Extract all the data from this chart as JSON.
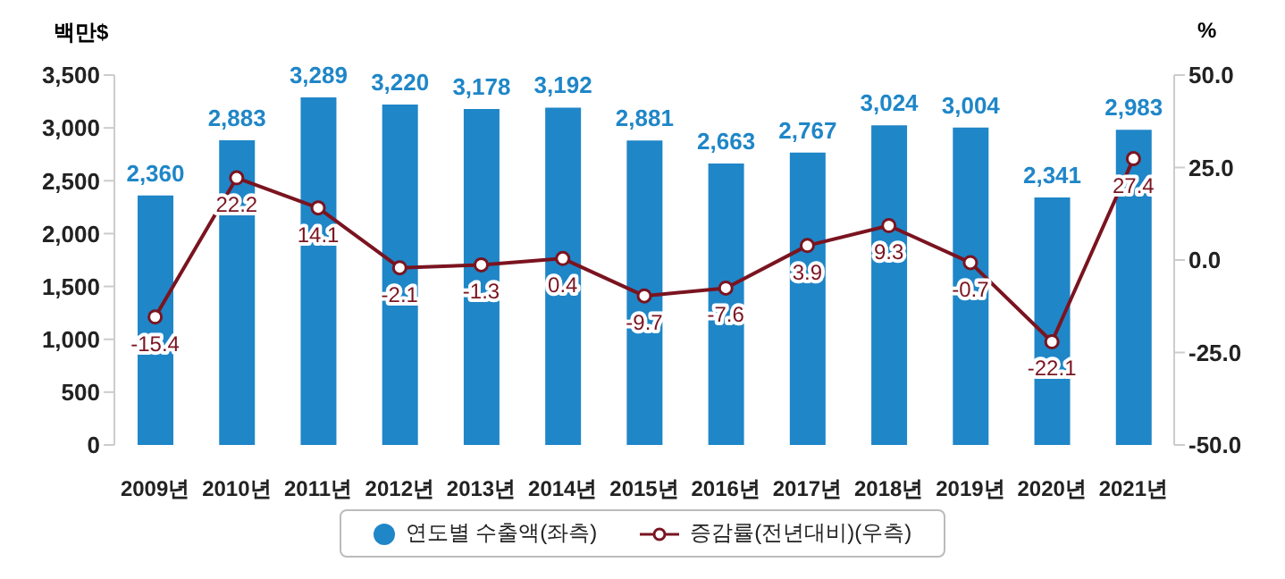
{
  "chart_data": {
    "type": "bar",
    "ylabel": "백만$",
    "y2label": "%",
    "categories": [
      "2009년",
      "2010년",
      "2011년",
      "2012년",
      "2013년",
      "2014년",
      "2015년",
      "2016년",
      "2017년",
      "2018년",
      "2019년",
      "2020년",
      "2021년"
    ],
    "series": [
      {
        "name": "연도별 수출액(좌측)",
        "color": "#1f86c8",
        "values": [
          2360,
          2883,
          3289,
          3220,
          3178,
          3192,
          2881,
          2663,
          2767,
          3024,
          3004,
          2341,
          2983
        ],
        "value_labels": [
          "2,360",
          "2,883",
          "3,289",
          "3,220",
          "3,178",
          "3,192",
          "2,881",
          "2,663",
          "2,767",
          "3,024",
          "3,004",
          "2,341",
          "2,983"
        ]
      },
      {
        "name": "증감률(전년대비)(우측)",
        "type": "line",
        "axis": "y2",
        "color": "#7a1420",
        "marker": "circle",
        "values": [
          -15.4,
          22.2,
          14.1,
          -2.1,
          -1.3,
          0.4,
          -9.7,
          -7.6,
          3.9,
          9.3,
          -0.7,
          -22.1,
          27.4
        ],
        "value_labels": [
          "-15.4",
          "22.2",
          "14.1",
          "-2.1",
          "-1.3",
          "0.4",
          "-9.7",
          "-7.6",
          "3.9",
          "9.3",
          "-0.7",
          "-22.1",
          "27.4"
        ]
      }
    ],
    "ylim": [
      0,
      3500
    ],
    "yticks": [
      {
        "value": 0,
        "label": "0"
      },
      {
        "value": 500,
        "label": "500"
      },
      {
        "value": 1000,
        "label": "1,000"
      },
      {
        "value": 1500,
        "label": "1,500"
      },
      {
        "value": 2000,
        "label": "2,000"
      },
      {
        "value": 2500,
        "label": "2,500"
      },
      {
        "value": 3000,
        "label": "3,000"
      },
      {
        "value": 3500,
        "label": "3,500"
      }
    ],
    "y2lim": [
      -50,
      50
    ],
    "y2ticks": [
      {
        "value": -50,
        "label": "-50.0"
      },
      {
        "value": -25,
        "label": "-25.0"
      },
      {
        "value": 0,
        "label": "0.0"
      },
      {
        "value": 25,
        "label": "25.0"
      },
      {
        "value": 50,
        "label": "50.0"
      }
    ],
    "grid": false,
    "legend": "bottom"
  }
}
